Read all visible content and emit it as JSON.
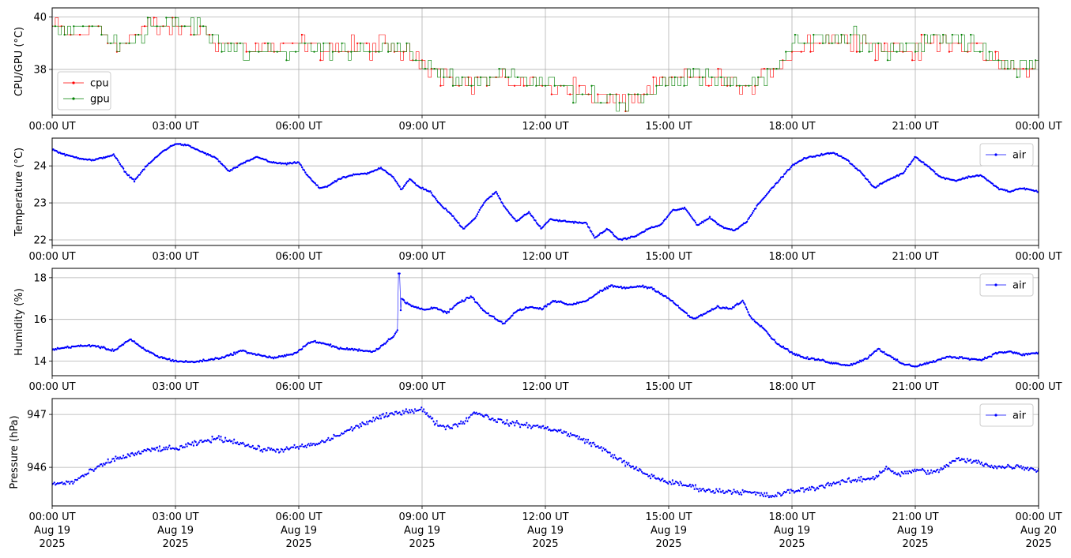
{
  "colors": {
    "cpu": "#ff0000",
    "gpu": "#008000",
    "air": "#0000ff",
    "grid": "#b0b0b0"
  },
  "x_ticks": [
    "00:00 UT",
    "03:00 UT",
    "06:00 UT",
    "09:00 UT",
    "12:00 UT",
    "15:00 UT",
    "18:00 UT",
    "21:00 UT",
    "00:00 UT"
  ],
  "x_bottom_dates": [
    "Aug 19",
    "Aug 19",
    "Aug 19",
    "Aug 19",
    "Aug 19",
    "Aug 19",
    "Aug 19",
    "Aug 19",
    "Aug 20"
  ],
  "x_bottom_years": [
    "2025",
    "2025",
    "2025",
    "2025",
    "2025",
    "2025",
    "2025",
    "2025",
    "2025"
  ],
  "chart_data": [
    {
      "type": "line",
      "ylabel": "CPU/GPU (°C)",
      "xlim": [
        "2025-08-19 00:00",
        "2025-08-20 00:00"
      ],
      "ylim": [
        36.25,
        40.35
      ],
      "yticks": [
        38,
        40
      ],
      "grid": true,
      "legend": "bottom-left",
      "series": [
        {
          "name": "cpu",
          "color": "#ff0000",
          "x_hours": [
            0,
            0.5,
            1.0,
            1.6,
            1.9,
            2.4,
            3.0,
            3.6,
            4.1,
            4.7,
            5.5,
            6.0,
            6.5,
            7.2,
            8.0,
            8.7,
            9.2,
            9.6,
            10.0,
            10.5,
            11.0,
            11.5,
            11.9,
            12.4,
            12.9,
            13.3,
            13.8,
            14.3,
            14.8,
            15.3,
            15.7,
            16.2,
            16.7,
            17.0,
            17.5,
            18.0,
            18.5,
            19.0,
            19.5,
            20.0,
            20.5,
            21.0,
            21.5,
            22.0,
            22.5,
            23.0,
            23.5,
            24.0
          ],
          "values": [
            39.6,
            39.3,
            39.6,
            38.9,
            39.2,
            39.6,
            39.6,
            39.5,
            39.0,
            38.9,
            38.8,
            38.9,
            38.8,
            38.8,
            38.9,
            38.5,
            38.2,
            37.8,
            37.4,
            37.6,
            37.7,
            37.5,
            37.3,
            37.3,
            37.2,
            36.9,
            36.8,
            37.0,
            37.4,
            37.6,
            37.7,
            37.6,
            37.5,
            37.2,
            38.0,
            38.7,
            39.1,
            39.1,
            39.2,
            38.9,
            38.8,
            38.7,
            39.1,
            39.1,
            38.6,
            38.2,
            38.0,
            38.1
          ]
        },
        {
          "name": "gpu",
          "color": "#008000",
          "x_hours": [
            0,
            0.5,
            1.0,
            1.6,
            1.9,
            2.4,
            3.0,
            3.6,
            4.1,
            4.7,
            5.5,
            6.0,
            6.5,
            7.2,
            8.0,
            8.7,
            9.2,
            9.6,
            10.0,
            10.5,
            11.0,
            11.5,
            11.9,
            12.4,
            12.9,
            13.3,
            13.8,
            14.3,
            14.8,
            15.3,
            15.7,
            16.2,
            16.7,
            17.0,
            17.5,
            18.0,
            18.5,
            19.0,
            19.5,
            20.0,
            20.5,
            21.0,
            21.5,
            22.0,
            22.5,
            23.0,
            23.5,
            24.0
          ],
          "values": [
            39.7,
            39.4,
            39.7,
            38.8,
            39.1,
            39.7,
            39.7,
            39.6,
            38.9,
            38.8,
            38.7,
            38.8,
            38.8,
            38.8,
            38.9,
            38.6,
            38.1,
            37.8,
            37.4,
            37.5,
            37.8,
            37.6,
            37.4,
            37.3,
            37.2,
            36.9,
            36.8,
            37.0,
            37.5,
            37.7,
            37.8,
            37.6,
            37.5,
            37.3,
            38.1,
            38.8,
            39.2,
            39.2,
            39.2,
            38.9,
            38.8,
            38.8,
            39.2,
            39.2,
            38.7,
            38.4,
            38.1,
            38.2
          ]
        }
      ]
    },
    {
      "type": "line",
      "ylabel": "Temperature (°C)",
      "xlim": [
        "2025-08-19 00:00",
        "2025-08-20 00:00"
      ],
      "ylim": [
        21.85,
        24.75
      ],
      "yticks": [
        22,
        23,
        24
      ],
      "grid": true,
      "legend": "top-right",
      "series": [
        {
          "name": "air",
          "color": "#0000ff",
          "x_hours": [
            0,
            0.3,
            0.7,
            1.0,
            1.5,
            1.8,
            2.0,
            2.3,
            2.7,
            3.0,
            3.3,
            3.6,
            4.0,
            4.3,
            4.7,
            5.0,
            5.3,
            5.7,
            6.0,
            6.2,
            6.5,
            6.7,
            7.0,
            7.3,
            7.7,
            8.0,
            8.3,
            8.5,
            8.7,
            8.9,
            9.2,
            9.4,
            9.7,
            10.0,
            10.3,
            10.5,
            10.8,
            11.0,
            11.3,
            11.6,
            11.9,
            12.1,
            12.5,
            13.0,
            13.2,
            13.5,
            13.8,
            14.2,
            14.5,
            14.8,
            15.1,
            15.4,
            15.7,
            16.0,
            16.3,
            16.6,
            16.9,
            17.2,
            17.6,
            18.0,
            18.3,
            18.7,
            19.0,
            19.3,
            19.7,
            20.0,
            20.3,
            20.7,
            21.0,
            21.3,
            21.6,
            22.0,
            22.3,
            22.6,
            23.0,
            23.3,
            23.6,
            24.0
          ],
          "values": [
            24.45,
            24.3,
            24.2,
            24.15,
            24.3,
            23.8,
            23.6,
            24.0,
            24.4,
            24.6,
            24.55,
            24.4,
            24.2,
            23.85,
            24.1,
            24.25,
            24.1,
            24.05,
            24.1,
            23.75,
            23.4,
            23.45,
            23.65,
            23.75,
            23.8,
            23.95,
            23.7,
            23.35,
            23.65,
            23.45,
            23.3,
            23.0,
            22.7,
            22.3,
            22.6,
            23.0,
            23.3,
            22.9,
            22.5,
            22.75,
            22.3,
            22.55,
            22.5,
            22.45,
            22.05,
            22.3,
            22.0,
            22.1,
            22.3,
            22.4,
            22.8,
            22.85,
            22.4,
            22.6,
            22.35,
            22.25,
            22.5,
            23.0,
            23.5,
            24.0,
            24.2,
            24.3,
            24.35,
            24.2,
            23.8,
            23.4,
            23.6,
            23.8,
            24.25,
            24.0,
            23.7,
            23.6,
            23.7,
            23.75,
            23.4,
            23.3,
            23.4,
            23.3
          ]
        }
      ]
    },
    {
      "type": "line",
      "ylabel": "Humidity (%)",
      "xlim": [
        "2025-08-19 00:00",
        "2025-08-20 00:00"
      ],
      "ylim": [
        13.3,
        18.45
      ],
      "yticks": [
        14,
        16,
        18
      ],
      "grid": true,
      "legend": "top-right",
      "series": [
        {
          "name": "air",
          "color": "#0000ff",
          "x_hours": [
            0,
            0.5,
            1.0,
            1.5,
            1.9,
            2.2,
            2.6,
            3.0,
            3.4,
            3.8,
            4.2,
            4.6,
            5.0,
            5.4,
            5.8,
            6.0,
            6.3,
            6.7,
            7.0,
            7.4,
            7.8,
            8.0,
            8.3,
            8.45,
            8.5,
            8.6,
            8.8,
            9.1,
            9.3,
            9.6,
            9.9,
            10.2,
            10.5,
            10.8,
            11.0,
            11.3,
            11.6,
            11.9,
            12.2,
            12.6,
            13.0,
            13.3,
            13.6,
            14.0,
            14.3,
            14.6,
            15.0,
            15.3,
            15.6,
            15.9,
            16.2,
            16.5,
            16.8,
            17.0,
            17.3,
            17.6,
            18.0,
            18.3,
            18.7,
            19.0,
            19.4,
            19.8,
            20.1,
            20.4,
            20.7,
            21.0,
            21.4,
            21.8,
            22.2,
            22.6,
            23.0,
            23.3,
            23.6,
            24.0
          ],
          "values": [
            14.55,
            14.7,
            14.75,
            14.5,
            15.05,
            14.6,
            14.2,
            14.0,
            13.95,
            14.05,
            14.2,
            14.5,
            14.3,
            14.15,
            14.3,
            14.5,
            14.95,
            14.8,
            14.6,
            14.55,
            14.45,
            14.7,
            15.2,
            15.6,
            17.0,
            16.8,
            16.6,
            16.45,
            16.6,
            16.3,
            16.8,
            17.1,
            16.4,
            16.0,
            15.8,
            16.4,
            16.6,
            16.5,
            16.9,
            16.7,
            16.9,
            17.3,
            17.6,
            17.5,
            17.6,
            17.5,
            17.0,
            16.5,
            16.0,
            16.3,
            16.6,
            16.5,
            16.9,
            16.1,
            15.6,
            14.9,
            14.4,
            14.15,
            14.05,
            13.9,
            13.8,
            14.1,
            14.6,
            14.2,
            13.85,
            13.75,
            13.95,
            14.2,
            14.15,
            14.05,
            14.4,
            14.45,
            14.3,
            14.4
          ]
        }
      ]
    },
    {
      "type": "scatter",
      "ylabel": "Pressure (hPa)",
      "xlim": [
        "2025-08-19 00:00",
        "2025-08-20 00:00"
      ],
      "ylim": [
        945.27,
        947.3
      ],
      "yticks": [
        946,
        947
      ],
      "grid": true,
      "legend": "top-right",
      "series": [
        {
          "name": "air",
          "color": "#0000ff",
          "x_hours": [
            0,
            0.5,
            1.0,
            1.5,
            2.0,
            2.5,
            3.0,
            3.5,
            4.0,
            4.5,
            5.0,
            5.5,
            6.0,
            6.5,
            7.0,
            7.5,
            8.0,
            8.5,
            9.0,
            9.3,
            9.6,
            10.0,
            10.3,
            10.6,
            11.0,
            11.5,
            12.0,
            12.5,
            13.0,
            13.5,
            14.0,
            14.5,
            15.0,
            15.5,
            16.0,
            16.5,
            17.0,
            17.5,
            18.0,
            18.5,
            19.0,
            19.5,
            20.0,
            20.3,
            20.6,
            21.0,
            21.5,
            22.0,
            22.5,
            23.0,
            23.5,
            24.0
          ],
          "values": [
            945.68,
            945.72,
            945.95,
            946.15,
            946.25,
            946.35,
            946.35,
            946.45,
            946.55,
            946.48,
            946.35,
            946.32,
            946.38,
            946.45,
            946.62,
            946.8,
            946.95,
            947.05,
            947.1,
            946.85,
            946.75,
            946.85,
            947.05,
            946.95,
            946.85,
            946.8,
            946.75,
            946.65,
            946.5,
            946.3,
            946.05,
            945.85,
            945.72,
            945.65,
            945.55,
            945.55,
            945.52,
            945.45,
            945.55,
            945.6,
            945.7,
            945.75,
            945.8,
            946.0,
            945.85,
            945.95,
            945.9,
            946.15,
            946.1,
            946.0,
            946.02,
            945.95
          ]
        }
      ]
    }
  ]
}
